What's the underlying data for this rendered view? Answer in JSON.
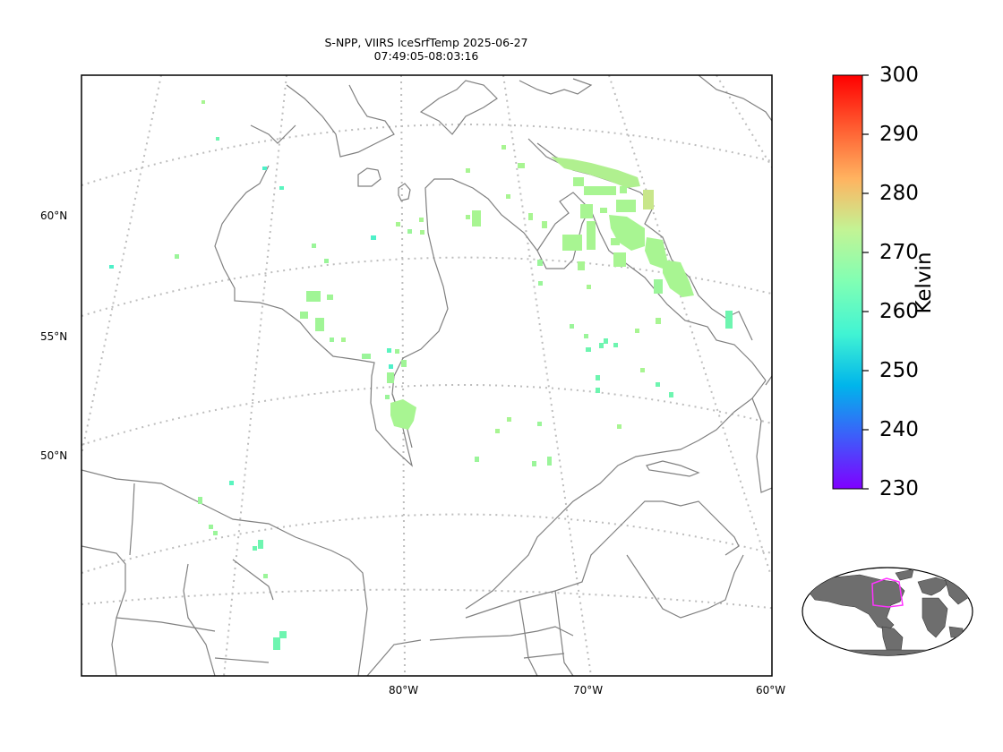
{
  "title": {
    "line1": "S-NPP, VIIRS IceSrfTemp 2025-06-27",
    "line2": "07:49:05-08:03:16"
  },
  "lat_labels": [
    "60°N",
    "55°N",
    "50°N"
  ],
  "lon_labels": [
    "80°W",
    "70°W",
    "60°W"
  ],
  "colorbar": {
    "label": "Kelvin",
    "min": 230,
    "max": 300,
    "ticks": [
      "300",
      "290",
      "280",
      "270",
      "260",
      "250",
      "240",
      "230"
    ],
    "colormap": [
      "#7f00ff",
      "#3e5cfa",
      "#00b5eb",
      "#41f4d3",
      "#80ffb4",
      "#c2f495",
      "#ffb360",
      "#ff5b30",
      "#ff0000"
    ]
  },
  "colors": {
    "coastline": "#808080",
    "graticule": "#bdbdbd",
    "inset_land": "#6e6e6e",
    "inset_box": "#ff33ff"
  }
}
